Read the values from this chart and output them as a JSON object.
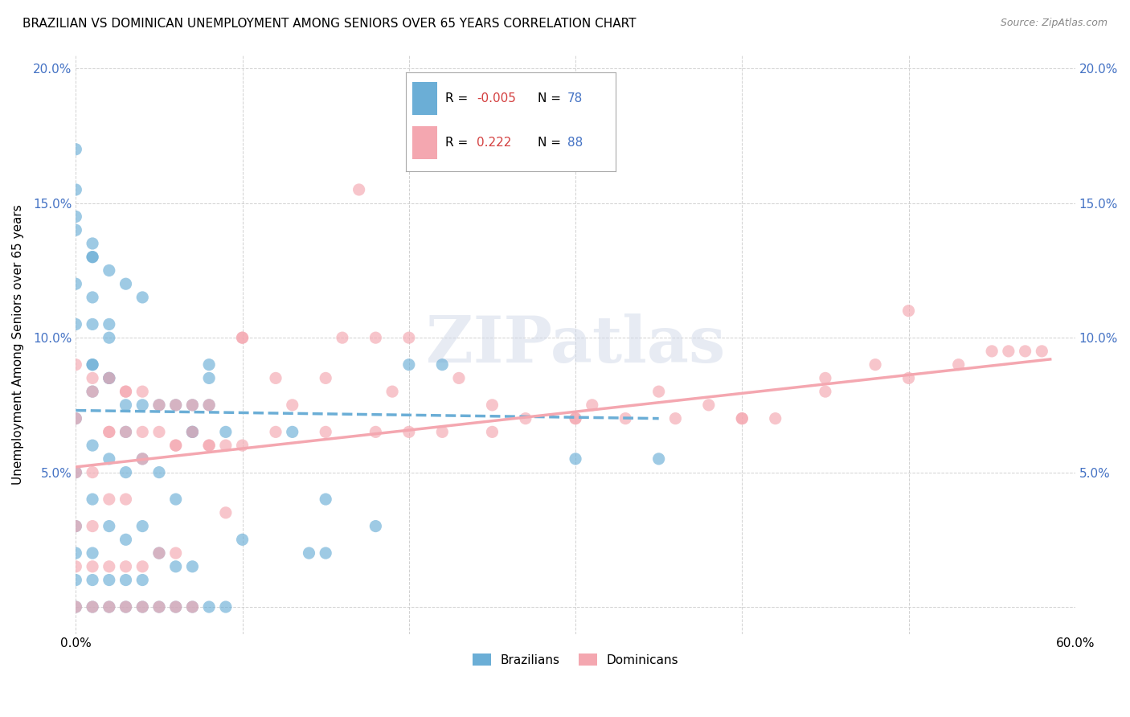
{
  "title": "BRAZILIAN VS DOMINICAN UNEMPLOYMENT AMONG SENIORS OVER 65 YEARS CORRELATION CHART",
  "source": "Source: ZipAtlas.com",
  "ylabel": "Unemployment Among Seniors over 65 years",
  "x_min": 0.0,
  "x_max": 0.6,
  "y_min": -0.01,
  "y_max": 0.205,
  "x_ticks": [
    0.0,
    0.1,
    0.2,
    0.3,
    0.4,
    0.5,
    0.6
  ],
  "x_tick_labels": [
    "0.0%",
    "",
    "",
    "",
    "",
    "",
    "60.0%"
  ],
  "y_ticks": [
    0.0,
    0.05,
    0.1,
    0.15,
    0.2
  ],
  "y_tick_labels_left": [
    "",
    "5.0%",
    "10.0%",
    "15.0%",
    "20.0%"
  ],
  "y_tick_labels_right": [
    "",
    "5.0%",
    "10.0%",
    "15.0%",
    "20.0%"
  ],
  "legend_labels": [
    "Brazilians",
    "Dominicans"
  ],
  "legend_R": [
    "-0.005",
    "0.222"
  ],
  "legend_N": [
    "78",
    "88"
  ],
  "color_brazil": "#6baed6",
  "color_dominican": "#f4a7b0",
  "color_brazil_trend": "#6baed6",
  "color_dominican_trend": "#f4a7b0",
  "watermark": "ZIPatlas",
  "brazil_scatter_x": [
    0.0,
    0.0,
    0.0,
    0.0,
    0.0,
    0.0,
    0.0,
    0.0,
    0.01,
    0.01,
    0.01,
    0.01,
    0.01,
    0.01,
    0.01,
    0.02,
    0.02,
    0.02,
    0.02,
    0.02,
    0.03,
    0.03,
    0.03,
    0.03,
    0.03,
    0.04,
    0.04,
    0.04,
    0.04,
    0.05,
    0.05,
    0.05,
    0.06,
    0.06,
    0.06,
    0.07,
    0.07,
    0.07,
    0.08,
    0.08,
    0.09,
    0.1,
    0.01,
    0.02,
    0.03,
    0.04,
    0.05,
    0.06,
    0.07,
    0.08,
    0.01,
    0.02,
    0.01,
    0.0,
    0.0,
    0.01,
    0.02,
    0.03,
    0.04,
    0.07,
    0.08,
    0.09,
    0.13,
    0.14,
    0.15,
    0.2,
    0.22,
    0.15,
    0.18,
    0.3,
    0.35,
    0.0,
    0.0,
    0.01,
    0.01,
    0.02
  ],
  "brazil_scatter_y": [
    0.0,
    0.01,
    0.02,
    0.03,
    0.05,
    0.07,
    0.145,
    0.17,
    0.0,
    0.01,
    0.02,
    0.04,
    0.06,
    0.08,
    0.09,
    0.0,
    0.01,
    0.03,
    0.055,
    0.085,
    0.0,
    0.01,
    0.025,
    0.05,
    0.065,
    0.0,
    0.01,
    0.03,
    0.055,
    0.0,
    0.02,
    0.075,
    0.0,
    0.015,
    0.04,
    0.0,
    0.015,
    0.065,
    0.0,
    0.075,
    0.0,
    0.025,
    0.09,
    0.085,
    0.075,
    0.075,
    0.05,
    0.075,
    0.065,
    0.09,
    0.105,
    0.105,
    0.115,
    0.105,
    0.12,
    0.13,
    0.125,
    0.12,
    0.115,
    0.075,
    0.085,
    0.065,
    0.065,
    0.02,
    0.02,
    0.09,
    0.09,
    0.04,
    0.03,
    0.055,
    0.055,
    0.155,
    0.14,
    0.135,
    0.13,
    0.1
  ],
  "dominican_scatter_x": [
    0.0,
    0.0,
    0.0,
    0.0,
    0.0,
    0.0,
    0.01,
    0.01,
    0.01,
    0.01,
    0.01,
    0.02,
    0.02,
    0.02,
    0.02,
    0.03,
    0.03,
    0.03,
    0.03,
    0.04,
    0.04,
    0.04,
    0.05,
    0.05,
    0.05,
    0.06,
    0.06,
    0.06,
    0.07,
    0.07,
    0.08,
    0.09,
    0.1,
    0.12,
    0.15,
    0.17,
    0.2,
    0.22,
    0.25,
    0.3,
    0.33,
    0.36,
    0.4,
    0.45,
    0.5,
    0.55,
    0.57,
    0.58,
    0.02,
    0.03,
    0.04,
    0.05,
    0.06,
    0.07,
    0.08,
    0.09,
    0.1,
    0.12,
    0.15,
    0.18,
    0.2,
    0.25,
    0.3,
    0.35,
    0.4,
    0.45,
    0.5,
    0.01,
    0.02,
    0.03,
    0.04,
    0.06,
    0.08,
    0.1,
    0.13,
    0.16,
    0.19,
    0.23,
    0.27,
    0.31,
    0.38,
    0.42,
    0.48,
    0.53,
    0.56,
    0.18
  ],
  "dominican_scatter_y": [
    0.0,
    0.015,
    0.03,
    0.05,
    0.07,
    0.09,
    0.0,
    0.015,
    0.03,
    0.05,
    0.085,
    0.0,
    0.015,
    0.04,
    0.065,
    0.0,
    0.015,
    0.04,
    0.08,
    0.0,
    0.015,
    0.055,
    0.0,
    0.02,
    0.065,
    0.0,
    0.02,
    0.06,
    0.0,
    0.065,
    0.075,
    0.035,
    0.06,
    0.065,
    0.065,
    0.155,
    0.065,
    0.065,
    0.065,
    0.07,
    0.07,
    0.07,
    0.07,
    0.08,
    0.085,
    0.095,
    0.095,
    0.095,
    0.085,
    0.08,
    0.08,
    0.075,
    0.075,
    0.075,
    0.06,
    0.06,
    0.1,
    0.085,
    0.085,
    0.1,
    0.1,
    0.075,
    0.07,
    0.08,
    0.07,
    0.085,
    0.11,
    0.08,
    0.065,
    0.065,
    0.065,
    0.06,
    0.06,
    0.1,
    0.075,
    0.1,
    0.08,
    0.085,
    0.07,
    0.075,
    0.075,
    0.07,
    0.09,
    0.09,
    0.095,
    0.065
  ],
  "brazil_trend_x": [
    0.0,
    0.35
  ],
  "brazil_trend_y": [
    0.073,
    0.07
  ],
  "dominican_trend_x": [
    0.0,
    0.585
  ],
  "dominican_trend_y": [
    0.052,
    0.092
  ]
}
